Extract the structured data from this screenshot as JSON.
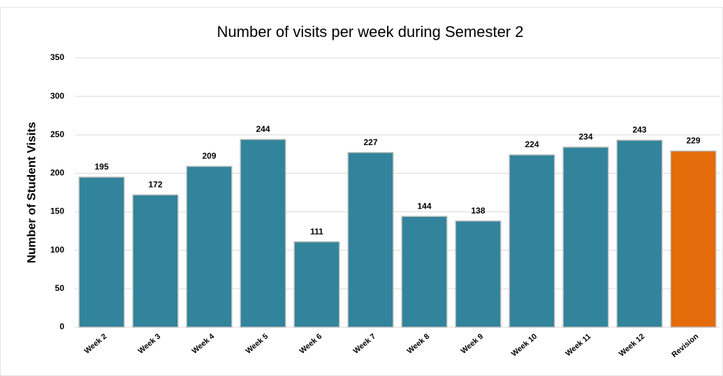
{
  "chart_data": {
    "type": "bar",
    "title": "Number of visits per week during Semester 2",
    "y_label": "Number of Student Visits",
    "categories": [
      "Week 2",
      "Week 3",
      "Week 4",
      "Week 5",
      "Week 6",
      "Week 7",
      "Week 8",
      "Week 9",
      "Week 10",
      "Week 11",
      "Week 12",
      "Revision"
    ],
    "values": [
      195,
      172,
      209,
      244,
      111,
      227,
      144,
      138,
      224,
      234,
      243,
      229
    ],
    "colors": [
      "#31849b",
      "#31849b",
      "#31849b",
      "#31849b",
      "#31849b",
      "#31849b",
      "#31849b",
      "#31849b",
      "#31849b",
      "#31849b",
      "#31849b",
      "#e46c0a"
    ],
    "ylim": [
      0,
      350
    ],
    "yticks": [
      0,
      50,
      100,
      150,
      200,
      250,
      300,
      350
    ],
    "grid": true
  }
}
